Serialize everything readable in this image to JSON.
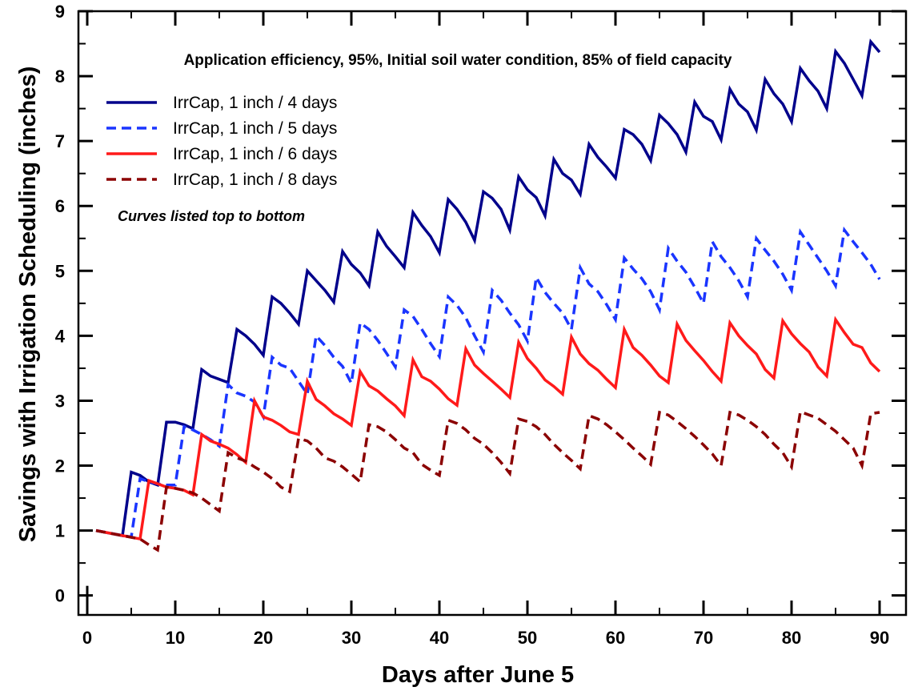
{
  "chart_data": {
    "type": "line",
    "title": "",
    "subtitle": "Application efficiency, 95%, Initial soil water condition, 85% of field capacity",
    "note": "Curves listed top to bottom",
    "xlabel": "Days after June 5",
    "ylabel": "Savings with Irrigation Scheduling (inches)",
    "xlim": [
      -1,
      93
    ],
    "ylim": [
      -0.3,
      9
    ],
    "x_ticks": [
      0,
      10,
      20,
      30,
      40,
      50,
      60,
      70,
      80,
      90
    ],
    "x_tick_labels": [
      "0",
      "10",
      "20",
      "30",
      "40",
      "50",
      "60",
      "70",
      "80",
      "90"
    ],
    "y_ticks": [
      0,
      1,
      2,
      3,
      4,
      5,
      6,
      7,
      8,
      9
    ],
    "y_tick_labels": [
      "0",
      "1",
      "2",
      "3",
      "4",
      "5",
      "6",
      "7",
      "8",
      "9"
    ],
    "grid": false,
    "legend_position": "top-left",
    "series": [
      {
        "name": "IrrCap, 1 inch / 4 days",
        "color": "#00008b",
        "dash": "solid",
        "x": [
          1,
          4,
          5,
          6,
          7,
          8,
          9,
          10,
          11,
          12,
          13,
          14,
          15,
          16,
          17,
          18,
          19,
          20,
          21,
          22,
          23,
          24,
          25,
          26,
          27,
          28,
          29,
          30,
          31,
          32,
          33,
          34,
          35,
          36,
          37,
          38,
          39,
          40,
          41,
          42,
          43,
          44,
          45,
          46,
          47,
          48,
          49,
          50,
          51,
          52,
          53,
          54,
          55,
          56,
          57,
          58,
          59,
          60,
          61,
          62,
          63,
          64,
          65,
          66,
          67,
          68,
          69,
          70,
          71,
          72,
          73,
          74,
          75,
          76,
          77,
          78,
          79,
          80,
          81,
          82,
          83,
          84,
          85,
          86,
          87,
          88,
          89,
          90
        ],
        "y": [
          1.0,
          0.92,
          1.9,
          1.85,
          1.75,
          1.7,
          2.67,
          2.67,
          2.63,
          2.57,
          3.48,
          3.38,
          3.33,
          3.28,
          4.1,
          4.0,
          3.87,
          3.7,
          4.6,
          4.5,
          4.35,
          4.18,
          5.0,
          4.85,
          4.7,
          4.52,
          5.3,
          5.1,
          4.97,
          4.77,
          5.6,
          5.38,
          5.22,
          5.05,
          5.9,
          5.7,
          5.53,
          5.28,
          6.1,
          5.95,
          5.75,
          5.47,
          6.22,
          6.12,
          5.95,
          5.63,
          6.45,
          6.25,
          6.13,
          5.85,
          6.72,
          6.5,
          6.4,
          6.18,
          6.95,
          6.75,
          6.6,
          6.43,
          7.18,
          7.1,
          6.95,
          6.7,
          7.4,
          7.27,
          7.1,
          6.83,
          7.6,
          7.38,
          7.3,
          7.02,
          7.8,
          7.57,
          7.45,
          7.17,
          7.95,
          7.73,
          7.57,
          7.3,
          8.12,
          7.93,
          7.77,
          7.5,
          8.38,
          8.2,
          7.95,
          7.7,
          8.53,
          8.37
        ]
      },
      {
        "name": "IrrCap, 1 inch / 5 days",
        "color": "#1a35ff",
        "dash": "dashed",
        "x": [
          1,
          5,
          6,
          7,
          8,
          9,
          10,
          11,
          12,
          13,
          14,
          15,
          16,
          17,
          18,
          19,
          20,
          21,
          22,
          23,
          24,
          25,
          26,
          27,
          28,
          29,
          30,
          31,
          32,
          33,
          34,
          35,
          36,
          37,
          38,
          39,
          40,
          41,
          42,
          43,
          44,
          45,
          46,
          47,
          48,
          49,
          50,
          51,
          52,
          53,
          54,
          55,
          56,
          57,
          58,
          59,
          60,
          61,
          62,
          63,
          64,
          65,
          66,
          67,
          68,
          69,
          70,
          71,
          72,
          73,
          74,
          75,
          76,
          77,
          78,
          79,
          80,
          81,
          82,
          83,
          84,
          85,
          86,
          87,
          88,
          89,
          90
        ],
        "y": [
          1.0,
          0.9,
          1.8,
          1.75,
          1.72,
          1.7,
          1.7,
          2.6,
          2.55,
          2.48,
          2.4,
          2.3,
          3.25,
          3.12,
          3.07,
          2.98,
          2.75,
          3.67,
          3.55,
          3.5,
          3.3,
          3.1,
          4.0,
          3.85,
          3.67,
          3.53,
          3.27,
          4.2,
          4.1,
          3.93,
          3.73,
          3.52,
          4.4,
          4.3,
          4.1,
          3.88,
          3.68,
          4.6,
          4.47,
          4.28,
          4.0,
          3.75,
          4.7,
          4.55,
          4.35,
          4.17,
          3.92,
          4.9,
          4.67,
          4.5,
          4.35,
          4.1,
          5.05,
          4.8,
          4.68,
          4.48,
          4.25,
          5.2,
          5.03,
          4.88,
          4.68,
          4.4,
          5.35,
          5.15,
          4.98,
          4.75,
          4.5,
          5.45,
          5.22,
          5.05,
          4.85,
          4.6,
          5.5,
          5.32,
          5.15,
          4.95,
          4.7,
          5.6,
          5.4,
          5.2,
          5.0,
          4.77,
          5.63,
          5.45,
          5.28,
          5.1,
          4.87
        ]
      },
      {
        "name": "IrrCap, 1 inch / 6 days",
        "color": "#ff1a1a",
        "dash": "solid",
        "x": [
          1,
          6,
          7,
          8,
          9,
          10,
          11,
          12,
          13,
          14,
          15,
          16,
          17,
          18,
          19,
          20,
          21,
          22,
          23,
          24,
          25,
          26,
          27,
          28,
          29,
          30,
          31,
          32,
          33,
          34,
          35,
          36,
          37,
          38,
          39,
          40,
          41,
          42,
          43,
          44,
          45,
          46,
          47,
          48,
          49,
          50,
          51,
          52,
          53,
          54,
          55,
          56,
          57,
          58,
          59,
          60,
          61,
          62,
          63,
          64,
          65,
          66,
          67,
          68,
          69,
          70,
          71,
          72,
          73,
          74,
          75,
          76,
          77,
          78,
          79,
          80,
          81,
          82,
          83,
          84,
          85,
          86,
          87,
          88,
          89,
          90
        ],
        "y": [
          1.0,
          0.87,
          1.77,
          1.72,
          1.67,
          1.65,
          1.62,
          1.55,
          2.48,
          2.38,
          2.33,
          2.27,
          2.17,
          2.05,
          3.0,
          2.75,
          2.7,
          2.62,
          2.52,
          2.48,
          3.3,
          3.02,
          2.92,
          2.8,
          2.72,
          2.62,
          3.45,
          3.23,
          3.15,
          3.03,
          2.92,
          2.77,
          3.63,
          3.37,
          3.3,
          3.18,
          3.03,
          2.93,
          3.8,
          3.55,
          3.42,
          3.3,
          3.18,
          3.05,
          3.9,
          3.65,
          3.5,
          3.32,
          3.22,
          3.1,
          3.98,
          3.72,
          3.57,
          3.47,
          3.33,
          3.2,
          4.1,
          3.82,
          3.7,
          3.55,
          3.38,
          3.28,
          4.18,
          3.93,
          3.77,
          3.62,
          3.45,
          3.3,
          4.2,
          4.0,
          3.85,
          3.72,
          3.48,
          3.35,
          4.23,
          4.03,
          3.88,
          3.75,
          3.52,
          3.38,
          4.25,
          4.05,
          3.87,
          3.82,
          3.58,
          3.45
        ]
      },
      {
        "name": "IrrCap, 1 inch / 8 days",
        "color": "#8b0000",
        "dash": "dashed",
        "x": [
          1,
          6,
          7,
          8,
          9,
          10,
          11,
          12,
          13,
          14,
          15,
          16,
          17,
          18,
          19,
          20,
          21,
          22,
          23,
          24,
          25,
          26,
          27,
          28,
          29,
          30,
          31,
          32,
          33,
          34,
          35,
          36,
          37,
          38,
          39,
          40,
          41,
          42,
          43,
          44,
          45,
          46,
          47,
          48,
          49,
          50,
          51,
          52,
          53,
          54,
          55,
          56,
          57,
          58,
          59,
          60,
          61,
          62,
          63,
          64,
          65,
          66,
          67,
          68,
          69,
          70,
          71,
          72,
          73,
          74,
          75,
          76,
          77,
          78,
          79,
          80,
          81,
          82,
          83,
          84,
          85,
          86,
          87,
          88,
          89,
          90
        ],
        "y": [
          1.0,
          0.87,
          0.78,
          0.7,
          1.67,
          1.65,
          1.62,
          1.58,
          1.5,
          1.4,
          1.3,
          2.2,
          2.12,
          2.07,
          1.98,
          1.9,
          1.8,
          1.67,
          1.6,
          2.42,
          2.38,
          2.27,
          2.12,
          2.07,
          1.98,
          1.87,
          1.75,
          2.63,
          2.6,
          2.52,
          2.4,
          2.27,
          2.2,
          2.02,
          1.93,
          1.85,
          2.7,
          2.65,
          2.55,
          2.42,
          2.33,
          2.2,
          2.05,
          1.88,
          2.72,
          2.68,
          2.6,
          2.48,
          2.33,
          2.2,
          2.08,
          1.95,
          2.77,
          2.72,
          2.63,
          2.52,
          2.4,
          2.27,
          2.15,
          2.02,
          2.82,
          2.78,
          2.68,
          2.57,
          2.45,
          2.32,
          2.18,
          2.0,
          2.82,
          2.78,
          2.7,
          2.6,
          2.48,
          2.33,
          2.2,
          1.98,
          2.83,
          2.78,
          2.73,
          2.63,
          2.53,
          2.4,
          2.27,
          2.0,
          2.8,
          2.82
        ]
      }
    ]
  }
}
